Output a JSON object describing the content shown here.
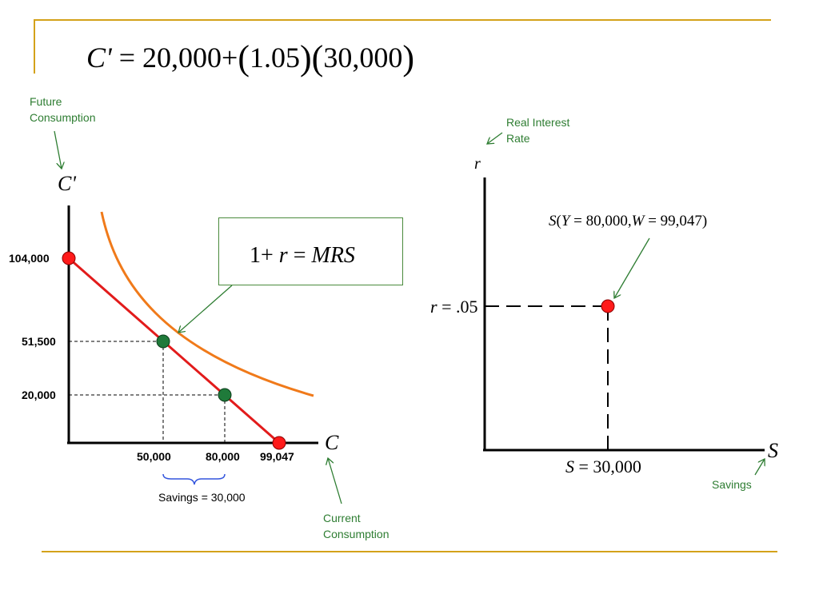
{
  "title_formula": {
    "lhs": "C'",
    "equals": "=",
    "term1": "20,000",
    "plus": "+",
    "factor1": "1.05",
    "factor2": "30,000"
  },
  "left_chart": {
    "y_axis_symbol": "C'",
    "x_axis_symbol": "C",
    "future_consumption_note": [
      "Future",
      "Consumption"
    ],
    "current_consumption_note": [
      "Current",
      "Consumption"
    ],
    "mrs_box": {
      "lhs": "1+",
      "r": "r",
      "equals": "=",
      "rhs": "MRS"
    },
    "y_tick_labels": [
      "104,000",
      "51,500",
      "20,000"
    ],
    "x_tick_labels": [
      "50,000",
      "80,000",
      "99,047"
    ],
    "savings_label": "Savings = 30,000"
  },
  "right_chart": {
    "y_axis_symbol": "r",
    "x_axis_symbol": "S",
    "real_rate_note": [
      "Real Interest",
      "Rate"
    ],
    "savings_note": "Savings",
    "r_label": {
      "sym": "r",
      "eq": "=",
      "val": ".05"
    },
    "s_label": {
      "sym": "S",
      "eq": "=",
      "val": "30,000"
    },
    "curve_label": {
      "fn": "S",
      "open": "(",
      "y": "Y",
      "eq1": "=",
      "yval": "80,000,",
      "w": "W",
      "eq2": "=",
      "wval": "99,047",
      "close": ")"
    }
  },
  "colors": {
    "frame": "#D4A21A",
    "budget_line": "#E21B1B",
    "indifference_curve": "#F07A1A",
    "note_green": "#2E7D32",
    "point_red": "#FF1A1A",
    "point_green": "#1F7A3A",
    "brace_blue": "#3355DD"
  },
  "chart_data": {
    "type": "line",
    "series": [
      {
        "points": [
          [
            0,
            104000
          ],
          [
            99047,
            0
          ]
        ]
      }
    ],
    "highlighted_points": [
      {
        "x": 0,
        "y": 104000
      },
      {
        "x": 50000,
        "y": 51500
      },
      {
        "x": 80000,
        "y": 20000
      },
      {
        "x": 99047,
        "y": 0
      }
    ],
    "supply_point": {
      "x": 30000,
      "y": 0.05
    }
  }
}
